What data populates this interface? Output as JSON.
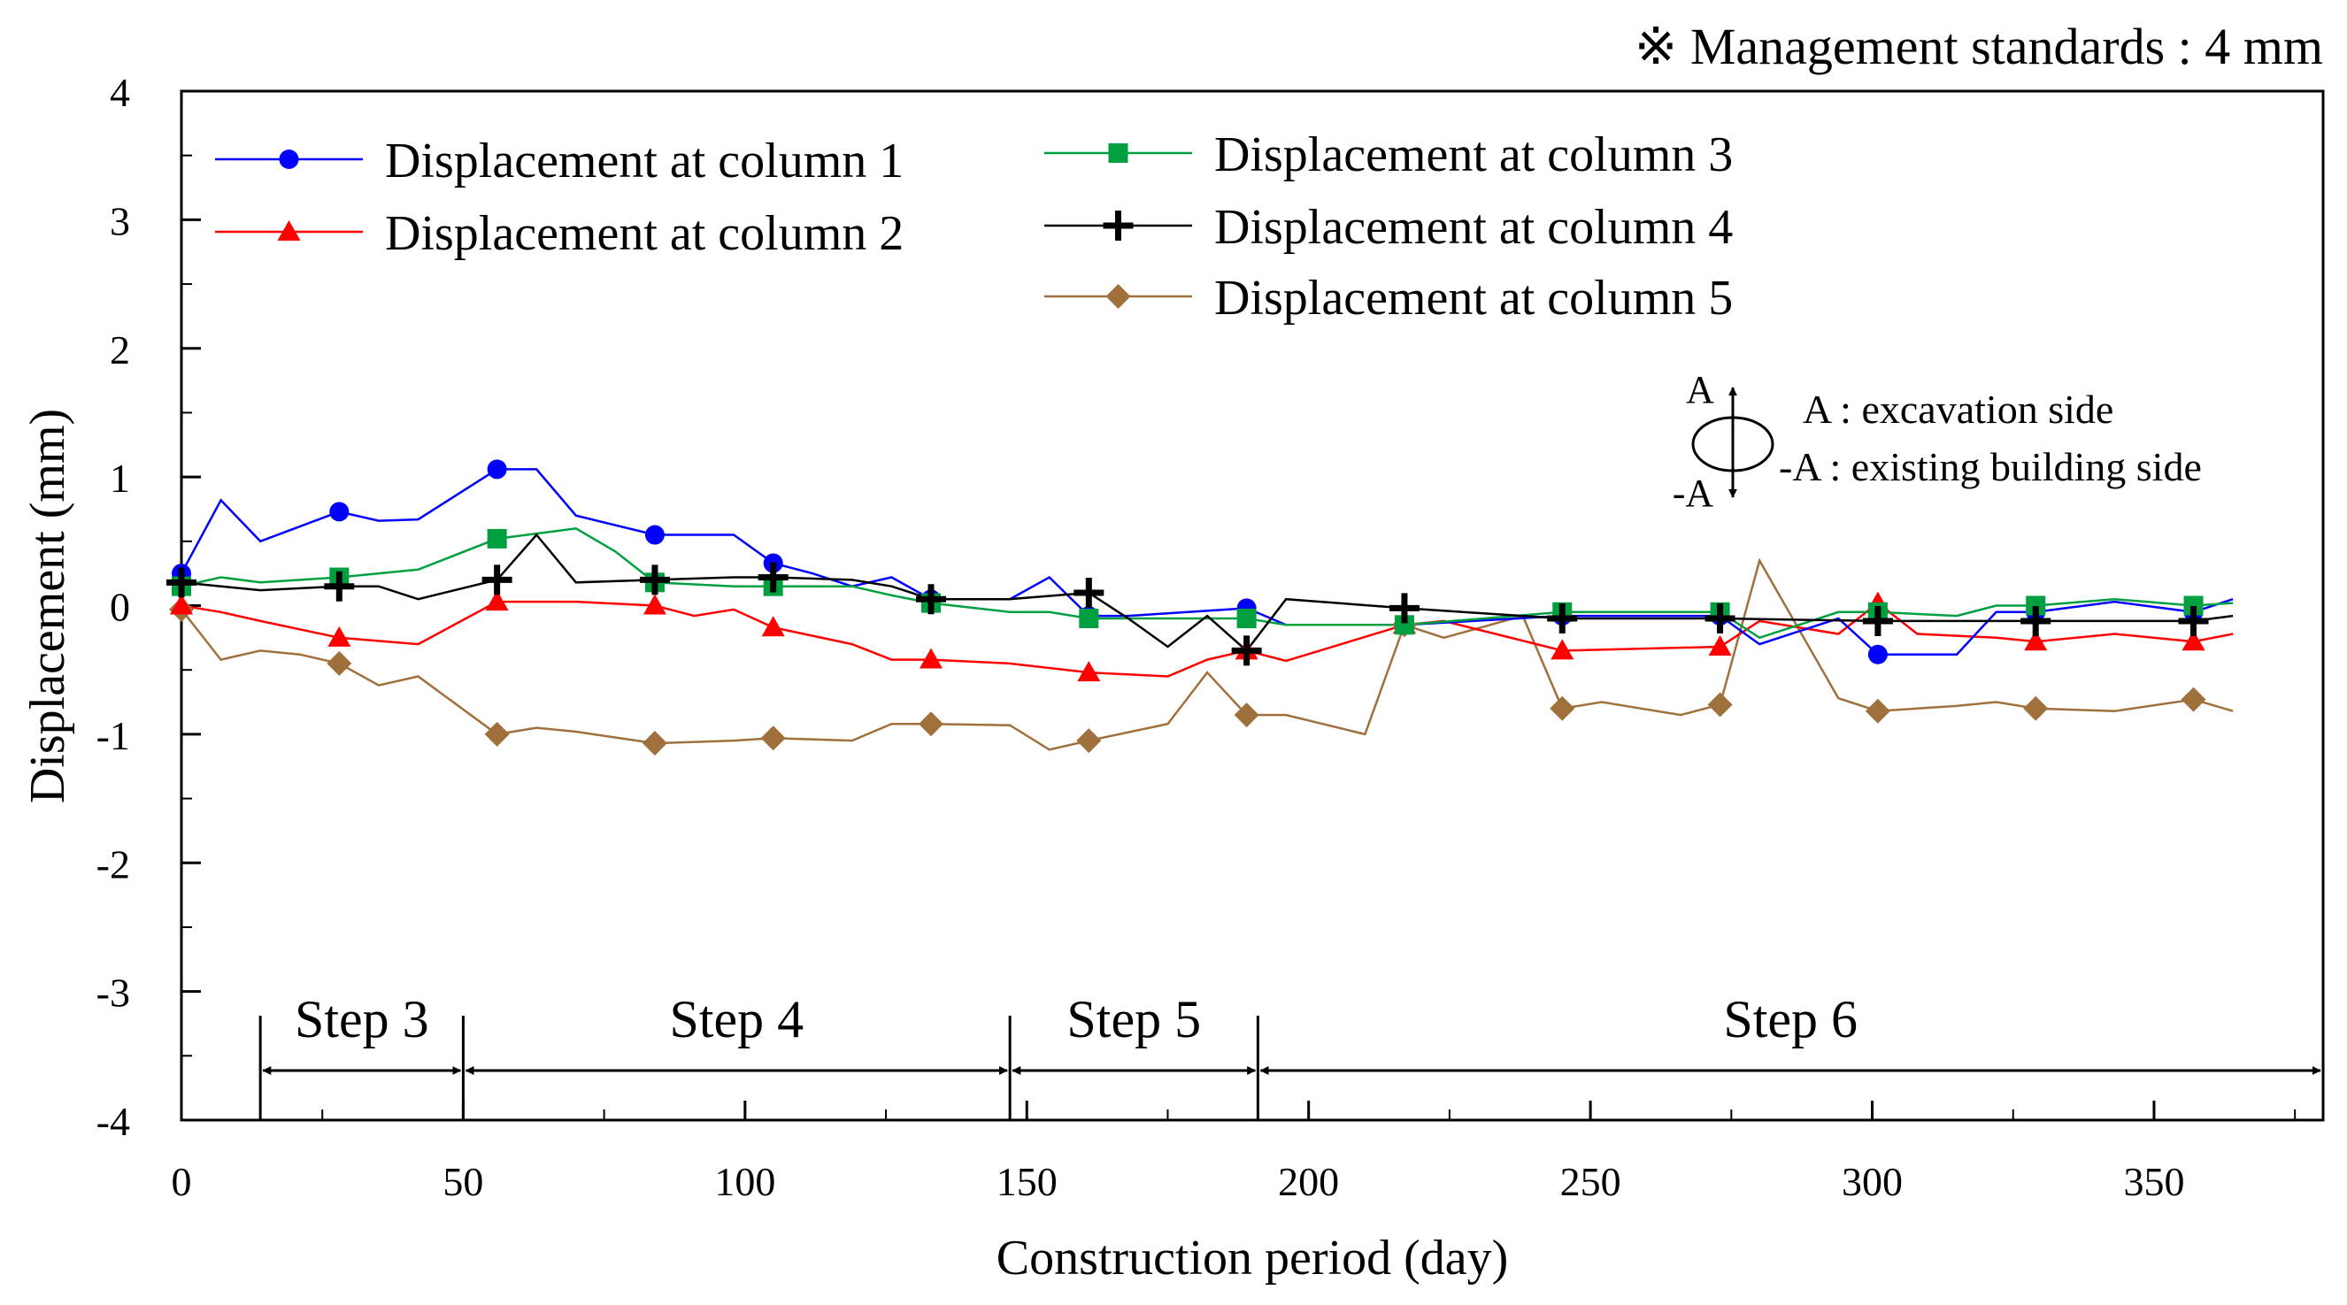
{
  "chart_data": {
    "type": "line",
    "title": "",
    "note": "※ Management standards : 4 mm",
    "xlabel": "Construction period (day)",
    "ylabel": "Displacement (mm)",
    "xlim": [
      0,
      380
    ],
    "ylim": [
      -4,
      4
    ],
    "x_ticks": [
      0,
      50,
      100,
      150,
      200,
      250,
      300,
      350
    ],
    "y_ticks": [
      4,
      3,
      2,
      1,
      0,
      -1,
      -2,
      -3,
      -4
    ],
    "legend_position": "top-left",
    "series": [
      {
        "name": "Displacement at column 1",
        "color": "#0000ff",
        "marker": "circle",
        "line": [
          [
            0,
            0.25
          ],
          [
            7,
            0.82
          ],
          [
            14,
            0.5
          ],
          [
            28,
            0.73
          ],
          [
            35,
            0.66
          ],
          [
            42,
            0.67
          ],
          [
            56,
            1.06
          ],
          [
            63,
            1.06
          ],
          [
            70,
            0.7
          ],
          [
            84,
            0.55
          ],
          [
            98,
            0.55
          ],
          [
            105,
            0.33
          ],
          [
            112,
            0.25
          ],
          [
            119,
            0.15
          ],
          [
            126,
            0.22
          ],
          [
            133,
            0.05
          ],
          [
            147,
            0.05
          ],
          [
            154,
            0.22
          ],
          [
            161,
            -0.08
          ],
          [
            168,
            -0.08
          ],
          [
            189,
            -0.02
          ],
          [
            196,
            -0.15
          ],
          [
            217,
            -0.15
          ],
          [
            245,
            -0.08
          ],
          [
            266,
            -0.08
          ],
          [
            273,
            -0.08
          ],
          [
            280,
            -0.3
          ],
          [
            294,
            -0.1
          ],
          [
            301,
            -0.38
          ],
          [
            308,
            -0.38
          ],
          [
            315,
            -0.38
          ],
          [
            322,
            -0.05
          ],
          [
            329,
            -0.05
          ],
          [
            343,
            0.03
          ],
          [
            357,
            -0.05
          ],
          [
            364,
            0.05
          ]
        ],
        "markers": [
          [
            0,
            0.25
          ],
          [
            28,
            0.73
          ],
          [
            56,
            1.06
          ],
          [
            84,
            0.55
          ],
          [
            105,
            0.33
          ],
          [
            133,
            0.05
          ],
          [
            161,
            -0.08
          ],
          [
            189,
            -0.02
          ],
          [
            217,
            -0.15
          ],
          [
            245,
            -0.08
          ],
          [
            273,
            -0.08
          ],
          [
            301,
            -0.38
          ],
          [
            329,
            -0.05
          ],
          [
            357,
            -0.05
          ]
        ]
      },
      {
        "name": "Displacement at column 2",
        "color": "#ff0000",
        "marker": "triangle",
        "line": [
          [
            0,
            0.0
          ],
          [
            7,
            -0.05
          ],
          [
            14,
            -0.12
          ],
          [
            28,
            -0.25
          ],
          [
            42,
            -0.3
          ],
          [
            56,
            0.03
          ],
          [
            70,
            0.03
          ],
          [
            84,
            0.0
          ],
          [
            91,
            -0.08
          ],
          [
            98,
            -0.03
          ],
          [
            105,
            -0.17
          ],
          [
            119,
            -0.3
          ],
          [
            126,
            -0.42
          ],
          [
            133,
            -0.42
          ],
          [
            147,
            -0.45
          ],
          [
            161,
            -0.52
          ],
          [
            175,
            -0.55
          ],
          [
            182,
            -0.42
          ],
          [
            189,
            -0.35
          ],
          [
            196,
            -0.43
          ],
          [
            217,
            -0.15
          ],
          [
            224,
            -0.12
          ],
          [
            245,
            -0.35
          ],
          [
            273,
            -0.32
          ],
          [
            280,
            -0.12
          ],
          [
            294,
            -0.22
          ],
          [
            301,
            0.02
          ],
          [
            308,
            -0.22
          ],
          [
            322,
            -0.25
          ],
          [
            329,
            -0.28
          ],
          [
            343,
            -0.22
          ],
          [
            357,
            -0.28
          ],
          [
            364,
            -0.22
          ]
        ],
        "markers": [
          [
            0,
            0.0
          ],
          [
            28,
            -0.25
          ],
          [
            56,
            0.03
          ],
          [
            84,
            0.0
          ],
          [
            105,
            -0.17
          ],
          [
            133,
            -0.42
          ],
          [
            161,
            -0.52
          ],
          [
            189,
            -0.35
          ],
          [
            217,
            -0.15
          ],
          [
            245,
            -0.35
          ],
          [
            273,
            -0.32
          ],
          [
            301,
            0.02
          ],
          [
            329,
            -0.28
          ],
          [
            357,
            -0.28
          ]
        ]
      },
      {
        "name": "Displacement at column 3",
        "color": "#00a040",
        "marker": "square",
        "line": [
          [
            0,
            0.15
          ],
          [
            7,
            0.22
          ],
          [
            14,
            0.18
          ],
          [
            28,
            0.22
          ],
          [
            42,
            0.28
          ],
          [
            56,
            0.52
          ],
          [
            70,
            0.6
          ],
          [
            77,
            0.42
          ],
          [
            84,
            0.18
          ],
          [
            98,
            0.15
          ],
          [
            105,
            0.15
          ],
          [
            119,
            0.15
          ],
          [
            126,
            0.08
          ],
          [
            133,
            0.02
          ],
          [
            147,
            -0.05
          ],
          [
            154,
            -0.05
          ],
          [
            161,
            -0.1
          ],
          [
            182,
            -0.1
          ],
          [
            189,
            -0.1
          ],
          [
            196,
            -0.15
          ],
          [
            217,
            -0.15
          ],
          [
            245,
            -0.05
          ],
          [
            273,
            -0.05
          ],
          [
            280,
            -0.25
          ],
          [
            294,
            -0.05
          ],
          [
            301,
            -0.05
          ],
          [
            315,
            -0.08
          ],
          [
            322,
            0.0
          ],
          [
            329,
            0.0
          ],
          [
            343,
            0.05
          ],
          [
            357,
            0.0
          ],
          [
            364,
            0.02
          ]
        ],
        "markers": [
          [
            0,
            0.15
          ],
          [
            28,
            0.22
          ],
          [
            56,
            0.52
          ],
          [
            84,
            0.18
          ],
          [
            105,
            0.15
          ],
          [
            133,
            0.02
          ],
          [
            161,
            -0.1
          ],
          [
            189,
            -0.1
          ],
          [
            217,
            -0.15
          ],
          [
            245,
            -0.05
          ],
          [
            273,
            -0.05
          ],
          [
            301,
            -0.05
          ],
          [
            329,
            0.0
          ],
          [
            357,
            0.0
          ]
        ]
      },
      {
        "name": "Displacement at column 4",
        "color": "#000000",
        "marker": "plus",
        "line": [
          [
            0,
            0.18
          ],
          [
            7,
            0.15
          ],
          [
            14,
            0.12
          ],
          [
            28,
            0.15
          ],
          [
            35,
            0.15
          ],
          [
            42,
            0.05
          ],
          [
            56,
            0.2
          ],
          [
            63,
            0.55
          ],
          [
            70,
            0.18
          ],
          [
            84,
            0.2
          ],
          [
            98,
            0.22
          ],
          [
            105,
            0.22
          ],
          [
            119,
            0.2
          ],
          [
            126,
            0.15
          ],
          [
            133,
            0.05
          ],
          [
            147,
            0.05
          ],
          [
            161,
            0.1
          ],
          [
            168,
            -0.1
          ],
          [
            175,
            -0.32
          ],
          [
            182,
            -0.08
          ],
          [
            189,
            -0.35
          ],
          [
            196,
            0.05
          ],
          [
            217,
            -0.02
          ],
          [
            245,
            -0.1
          ],
          [
            273,
            -0.1
          ],
          [
            301,
            -0.12
          ],
          [
            315,
            -0.12
          ],
          [
            329,
            -0.12
          ],
          [
            343,
            -0.12
          ],
          [
            357,
            -0.12
          ],
          [
            364,
            -0.08
          ]
        ],
        "markers": [
          [
            0,
            0.18
          ],
          [
            28,
            0.15
          ],
          [
            56,
            0.2
          ],
          [
            84,
            0.2
          ],
          [
            105,
            0.22
          ],
          [
            133,
            0.05
          ],
          [
            161,
            0.1
          ],
          [
            189,
            -0.35
          ],
          [
            217,
            -0.02
          ],
          [
            245,
            -0.1
          ],
          [
            273,
            -0.1
          ],
          [
            301,
            -0.12
          ],
          [
            329,
            -0.12
          ],
          [
            357,
            -0.12
          ]
        ]
      },
      {
        "name": "Displacement at column 5",
        "color": "#a0703c",
        "marker": "diamond",
        "line": [
          [
            0,
            -0.03
          ],
          [
            7,
            -0.42
          ],
          [
            14,
            -0.35
          ],
          [
            21,
            -0.38
          ],
          [
            28,
            -0.45
          ],
          [
            35,
            -0.62
          ],
          [
            42,
            -0.55
          ],
          [
            56,
            -1.0
          ],
          [
            63,
            -0.95
          ],
          [
            70,
            -0.98
          ],
          [
            84,
            -1.07
          ],
          [
            98,
            -1.05
          ],
          [
            105,
            -1.03
          ],
          [
            119,
            -1.05
          ],
          [
            126,
            -0.92
          ],
          [
            133,
            -0.92
          ],
          [
            147,
            -0.93
          ],
          [
            154,
            -1.12
          ],
          [
            161,
            -1.05
          ],
          [
            175,
            -0.92
          ],
          [
            182,
            -0.52
          ],
          [
            189,
            -0.85
          ],
          [
            196,
            -0.85
          ],
          [
            210,
            -1.0
          ],
          [
            217,
            -0.15
          ],
          [
            224,
            -0.25
          ],
          [
            238,
            -0.08
          ],
          [
            245,
            -0.8
          ],
          [
            252,
            -0.75
          ],
          [
            266,
            -0.85
          ],
          [
            273,
            -0.77
          ],
          [
            280,
            0.35
          ],
          [
            294,
            -0.72
          ],
          [
            301,
            -0.82
          ],
          [
            315,
            -0.78
          ],
          [
            322,
            -0.75
          ],
          [
            329,
            -0.8
          ],
          [
            343,
            -0.82
          ],
          [
            357,
            -0.73
          ],
          [
            364,
            -0.82
          ]
        ],
        "markers": [
          [
            0,
            -0.03
          ],
          [
            28,
            -0.45
          ],
          [
            56,
            -1.0
          ],
          [
            84,
            -1.07
          ],
          [
            105,
            -1.03
          ],
          [
            133,
            -0.92
          ],
          [
            161,
            -1.05
          ],
          [
            189,
            -0.85
          ],
          [
            217,
            -0.15
          ],
          [
            245,
            -0.8
          ],
          [
            273,
            -0.77
          ],
          [
            301,
            -0.82
          ],
          [
            329,
            -0.8
          ],
          [
            357,
            -0.73
          ]
        ]
      }
    ],
    "steps": [
      {
        "label": "Step 3",
        "start": 14,
        "end": 50
      },
      {
        "label": "Step 4",
        "start": 50,
        "end": 147
      },
      {
        "label": "Step 5",
        "start": 147,
        "end": 191
      },
      {
        "label": "Step 6",
        "start": 191,
        "end": 380
      }
    ],
    "direction_legend": {
      "top_label": "A",
      "bottom_label": "-A",
      "lines": [
        "A : excavation side",
        "-A : existing building side"
      ]
    }
  }
}
